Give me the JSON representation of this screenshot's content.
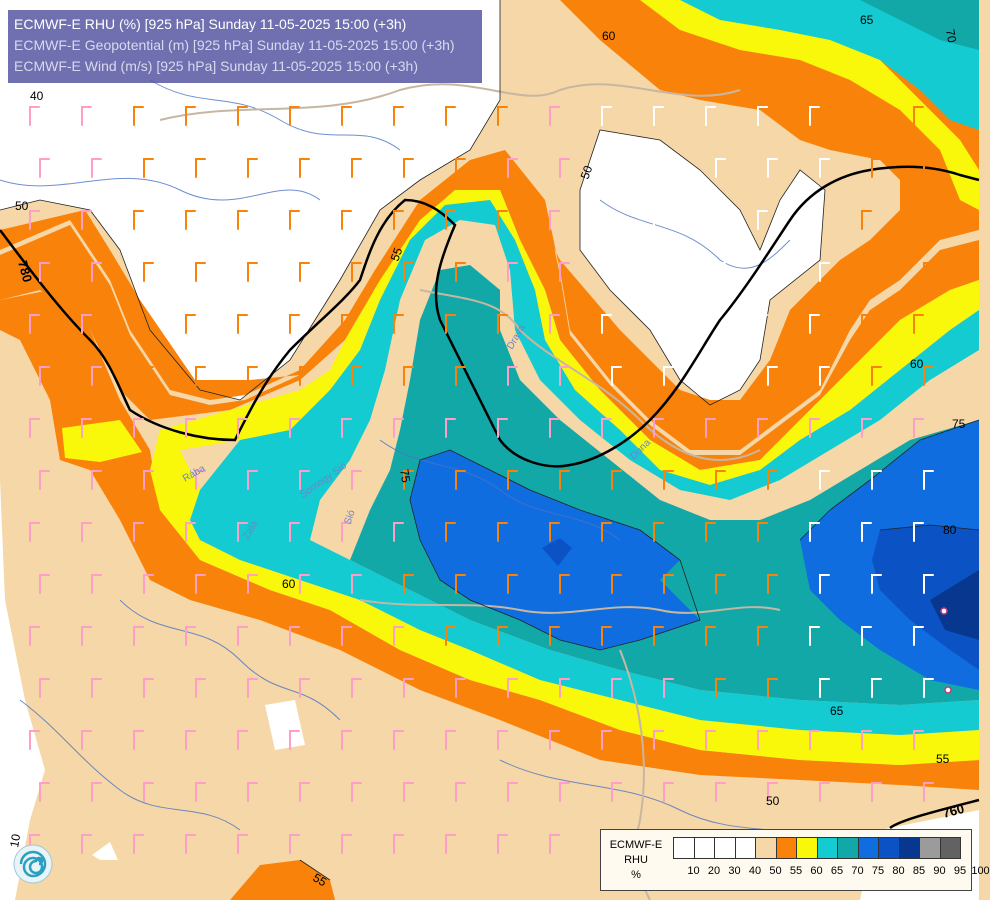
{
  "header": {
    "line1": "ECMWF-E RHU (%) [925 hPa] Sunday 11-05-2025 15:00 (+3h)",
    "line2": "ECMWF-E Geopotential (m) [925 hPa] Sunday 11-05-2025 15:00 (+3h)",
    "line3": "ECMWF-E Wind (m/s) [925 hPa] Sunday 11-05-2025 15:00 (+3h)"
  },
  "legend": {
    "title1": "ECMWF-E",
    "title2": "RHU",
    "title3": "%",
    "labels": [
      "10",
      "20",
      "30",
      "40",
      "50",
      "55",
      "60",
      "65",
      "70",
      "75",
      "80",
      "85",
      "90",
      "95",
      "100"
    ],
    "colors": [
      "#ffffff",
      "#ffffff",
      "#ffffff",
      "#ffffff",
      "#f6d7a7",
      "#f9820a",
      "#f9f70a",
      "#13cbd0",
      "#12a8a8",
      "#0f6de0",
      "#0b53c4",
      "#07378e",
      "#9b9b9b",
      "#626262"
    ]
  },
  "contour_labels": {
    "rh": [
      "40",
      "50",
      "50",
      "55",
      "60",
      "60",
      "65",
      "65",
      "70",
      "75",
      "75",
      "80",
      "50",
      "55",
      "55",
      "60",
      "10"
    ],
    "geo": [
      "780",
      "760"
    ]
  },
  "rivers": [
    "Zala",
    "Somogy Sió",
    "Drava",
    "Rába",
    "Duna",
    "Sió"
  ],
  "map": {
    "logo": "ecmwf-swirl-logo"
  }
}
